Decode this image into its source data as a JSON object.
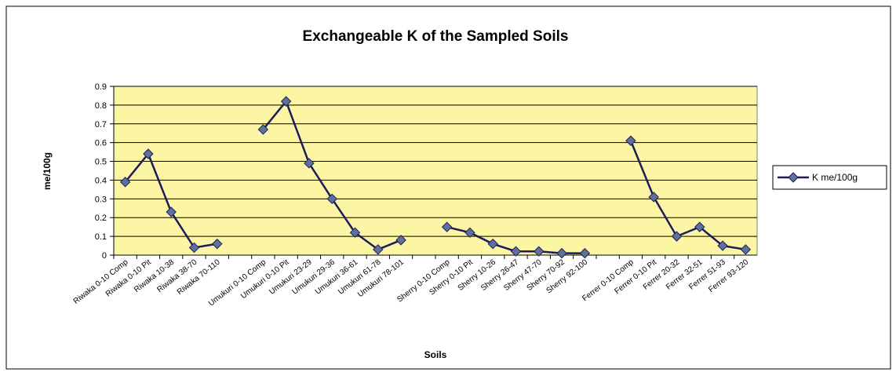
{
  "chart_data": {
    "type": "line",
    "title": "Exchangeable K of the Sampled Soils",
    "xlabel": "Soils",
    "ylabel": "me/100g",
    "categories": [
      "Riwaka 0-10 Comp",
      "Riwaka 0-10 Pit",
      "Riwaka 10-38",
      "Riwaka 38-70",
      "Riwaka 70-110",
      null,
      "Umukuri 0-10 Comp",
      "Umukuri 0-10 Pit",
      "Umukuri 23-29",
      "Umukuri 29-36",
      "Umukuri 36-61",
      "Umukuri 61-78",
      "Umukuri 78-101",
      null,
      "Sherry 0-10 Comp",
      "Sherry 0-10 Pit",
      "Sherry 10-26",
      "Sherry 26-47",
      "Sherry 47-70",
      "Sherry 70-92",
      "Sherry 92-100",
      null,
      "Ferrer 0-10 Comp",
      "Ferrer 0-10 Pit",
      "Ferrer 20-32",
      "Ferrer 32-51",
      "Ferrer 51-93",
      "Ferrer 93-120"
    ],
    "series": [
      {
        "name": "K me/100g",
        "color": "#1c1c5a",
        "marker_color": "#5f7199",
        "values": [
          0.39,
          0.54,
          0.23,
          0.04,
          0.06,
          null,
          0.67,
          0.82,
          0.49,
          0.3,
          0.12,
          0.03,
          0.08,
          null,
          0.15,
          0.12,
          0.06,
          0.02,
          0.02,
          0.01,
          0.01,
          null,
          0.61,
          0.31,
          0.1,
          0.15,
          0.05,
          0.03
        ]
      }
    ],
    "ylim": [
      0,
      0.9
    ],
    "yticks": [
      0,
      0.1,
      0.2,
      0.3,
      0.4,
      0.5,
      0.6,
      0.7,
      0.8,
      0.9
    ],
    "grid": true,
    "plot_background": "#fbf5a4",
    "legend": "right"
  }
}
